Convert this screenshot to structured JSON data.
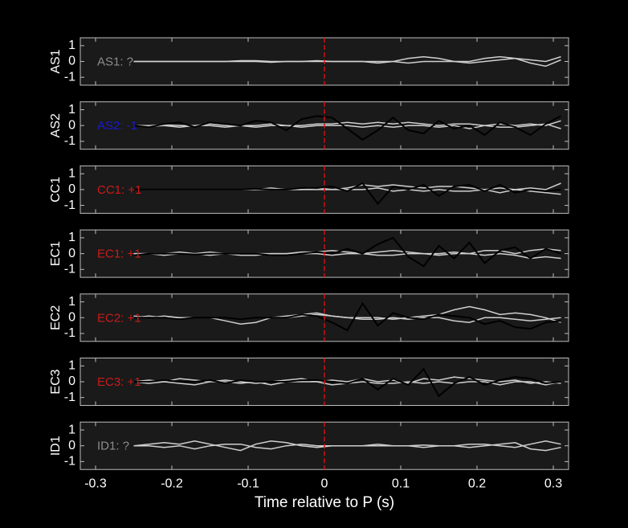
{
  "chart_data": [
    {
      "type": "line",
      "ylabel": "AS1",
      "annotation": "AS1: ?",
      "annotation_color": "#8c8c8c",
      "vline": 0,
      "vline_color": "#d01010",
      "xlim": [
        -0.32,
        0.32
      ],
      "ylim": [
        -1.5,
        1.5
      ],
      "yticks": [
        -1,
        0,
        1
      ],
      "xticks": [
        -0.3,
        -0.2,
        -0.1,
        0,
        0.1,
        0.2,
        0.3
      ],
      "x": [
        -0.25,
        -0.23,
        -0.21,
        -0.19,
        -0.17,
        -0.15,
        -0.13,
        -0.11,
        -0.09,
        -0.07,
        -0.05,
        -0.03,
        -0.01,
        0.01,
        0.03,
        0.05,
        0.07,
        0.09,
        0.11,
        0.13,
        0.15,
        0.17,
        0.19,
        0.21,
        0.23,
        0.25,
        0.27,
        0.29,
        0.31
      ],
      "series": [
        {
          "color": "#cfcfcf",
          "values": [
            0,
            0,
            0,
            0,
            0,
            0,
            0,
            0.05,
            0.05,
            0,
            0,
            0,
            0.05,
            0,
            0,
            0,
            -0.1,
            0,
            0.2,
            0.3,
            0.2,
            0,
            -0.1,
            0,
            0.1,
            0.2,
            0.1,
            0,
            0.3
          ]
        },
        {
          "color": "#cfcfcf",
          "values": [
            0,
            0,
            0,
            0,
            0,
            0,
            0,
            0,
            0,
            -0.05,
            0,
            0,
            0,
            0,
            0,
            0,
            0,
            0,
            -0.1,
            0,
            0,
            0,
            0,
            0.2,
            0.3,
            0.2,
            -0.1,
            -0.3,
            0.1
          ]
        }
      ]
    },
    {
      "type": "line",
      "ylabel": "AS2",
      "annotation": "AS2: -1",
      "annotation_color": "#1a1acc",
      "vline": 0,
      "vline_color": "#d01010",
      "xlim": [
        -0.32,
        0.32
      ],
      "ylim": [
        -1.5,
        1.5
      ],
      "yticks": [
        -1,
        0,
        1
      ],
      "xticks": [
        -0.3,
        -0.2,
        -0.1,
        0,
        0.1,
        0.2,
        0.3
      ],
      "x": [
        -0.25,
        -0.23,
        -0.21,
        -0.19,
        -0.17,
        -0.15,
        -0.13,
        -0.11,
        -0.09,
        -0.07,
        -0.05,
        -0.03,
        -0.01,
        0.01,
        0.03,
        0.05,
        0.07,
        0.09,
        0.11,
        0.13,
        0.15,
        0.17,
        0.19,
        0.21,
        0.23,
        0.25,
        0.27,
        0.29,
        0.31
      ],
      "series": [
        {
          "color": "#cfcfcf",
          "values": [
            0,
            0,
            0.05,
            0,
            0,
            0.1,
            0,
            0,
            0,
            0.1,
            0,
            0,
            0.1,
            0.1,
            0.2,
            0.1,
            0.2,
            0.1,
            0.2,
            0.1,
            0,
            0.1,
            0.1,
            0,
            0.1,
            0,
            0.1,
            0,
            0.3
          ]
        },
        {
          "color": "#cfcfcf",
          "values": [
            0,
            -0.05,
            0,
            -0.1,
            0,
            0,
            -0.1,
            0,
            -0.1,
            0,
            0,
            -0.1,
            0,
            0,
            0,
            -0.1,
            0,
            -0.1,
            0,
            0,
            -0.1,
            0,
            -0.2,
            0,
            -0.1,
            -0.1,
            0,
            0.1,
            -0.2
          ]
        },
        {
          "color": "#000000",
          "values": [
            0,
            -0.1,
            0.1,
            0.2,
            -0.1,
            0.2,
            0.1,
            0,
            0.3,
            0.2,
            -0.3,
            0.4,
            0.6,
            0.5,
            -0.2,
            -0.9,
            -0.3,
            0.5,
            -0.3,
            -0.5,
            0.3,
            -0.2,
            0,
            -0.6,
            0.2,
            -0.1,
            -0.6,
            0.1,
            0.6
          ]
        }
      ]
    },
    {
      "type": "line",
      "ylabel": "CC1",
      "annotation": "CC1: +1",
      "annotation_color": "#cc1a1a",
      "vline": 0,
      "vline_color": "#d01010",
      "xlim": [
        -0.32,
        0.32
      ],
      "ylim": [
        -1.5,
        1.5
      ],
      "yticks": [
        -1,
        0,
        1
      ],
      "xticks": [
        -0.3,
        -0.2,
        -0.1,
        0,
        0.1,
        0.2,
        0.3
      ],
      "x": [
        -0.25,
        -0.23,
        -0.21,
        -0.19,
        -0.17,
        -0.15,
        -0.13,
        -0.11,
        -0.09,
        -0.07,
        -0.05,
        -0.03,
        -0.01,
        0.01,
        0.03,
        0.05,
        0.07,
        0.09,
        0.11,
        0.13,
        0.15,
        0.17,
        0.19,
        0.21,
        0.23,
        0.25,
        0.27,
        0.29,
        0.31
      ],
      "series": [
        {
          "color": "#cfcfcf",
          "values": [
            0,
            0,
            0,
            0,
            0,
            0,
            0,
            0,
            0,
            0.1,
            0,
            0,
            0.1,
            0,
            0.1,
            0.3,
            0.2,
            0.3,
            0.2,
            0.1,
            0.2,
            0.2,
            0.1,
            0,
            0.1,
            0,
            0.1,
            0,
            0.4
          ]
        },
        {
          "color": "#cfcfcf",
          "values": [
            0,
            0,
            0,
            0,
            0,
            0,
            0,
            0,
            0,
            0,
            0,
            0,
            0,
            0,
            0,
            0,
            0.1,
            -0.1,
            0,
            -0.1,
            0,
            -0.1,
            -0.1,
            0,
            -0.2,
            0,
            -0.1,
            -0.2,
            -0.3
          ]
        },
        {
          "color": "#000000",
          "values": [
            0,
            0,
            0,
            0,
            0,
            0,
            0,
            0,
            0.05,
            0,
            0,
            0.1,
            0.1,
            0.2,
            -0.1,
            0.4,
            -0.9,
            0.2,
            0,
            0.3,
            -0.4,
            0.2,
            0.3,
            -0.1,
            0.3,
            -0.2,
            0,
            -0.1,
            0
          ]
        }
      ]
    },
    {
      "type": "line",
      "ylabel": "EC1",
      "annotation": "EC1: +1",
      "annotation_color": "#cc1a1a",
      "vline": 0,
      "vline_color": "#d01010",
      "xlim": [
        -0.32,
        0.32
      ],
      "ylim": [
        -1.5,
        1.5
      ],
      "yticks": [
        -1,
        0,
        1
      ],
      "xticks": [
        -0.3,
        -0.2,
        -0.1,
        0,
        0.1,
        0.2,
        0.3
      ],
      "x": [
        -0.25,
        -0.23,
        -0.21,
        -0.19,
        -0.17,
        -0.15,
        -0.13,
        -0.11,
        -0.09,
        -0.07,
        -0.05,
        -0.03,
        -0.01,
        0.01,
        0.03,
        0.05,
        0.07,
        0.09,
        0.11,
        0.13,
        0.15,
        0.17,
        0.19,
        0.21,
        0.23,
        0.25,
        0.27,
        0.29,
        0.31
      ],
      "series": [
        {
          "color": "#cfcfcf",
          "values": [
            0,
            0,
            0,
            0.1,
            0,
            0.1,
            0,
            0,
            0,
            0,
            0,
            0.1,
            0.1,
            0.2,
            0.1,
            0,
            0.1,
            0.2,
            0.1,
            0,
            0,
            0.1,
            0,
            0.2,
            0.2,
            0,
            0.2,
            0.3,
            0.2
          ]
        },
        {
          "color": "#cfcfcf",
          "values": [
            0,
            0,
            -0.1,
            0,
            0,
            -0.1,
            0,
            -0.1,
            -0.1,
            0,
            0,
            0,
            0,
            -0.1,
            0,
            0,
            -0.1,
            -0.1,
            0,
            0,
            -0.1,
            0,
            0,
            -0.1,
            0,
            -0.1,
            -0.3,
            -0.2,
            -0.3
          ]
        },
        {
          "color": "#000000",
          "values": [
            -0.1,
            0,
            0,
            0,
            -0.05,
            0,
            0,
            0,
            0,
            -0.1,
            -0.1,
            0,
            0.1,
            0,
            0.3,
            0,
            0.6,
            1.0,
            -0.2,
            -0.8,
            0.5,
            -0.3,
            0.7,
            -0.6,
            0.2,
            0.4,
            -0.3,
            0.3,
            0
          ]
        }
      ]
    },
    {
      "type": "line",
      "ylabel": "EC2",
      "annotation": "EC2: +1",
      "annotation_color": "#cc1a1a",
      "vline": 0,
      "vline_color": "#d01010",
      "xlim": [
        -0.32,
        0.32
      ],
      "ylim": [
        -1.5,
        1.5
      ],
      "yticks": [
        -1,
        0,
        1
      ],
      "xticks": [
        -0.3,
        -0.2,
        -0.1,
        0,
        0.1,
        0.2,
        0.3
      ],
      "x": [
        -0.25,
        -0.23,
        -0.21,
        -0.19,
        -0.17,
        -0.15,
        -0.13,
        -0.11,
        -0.09,
        -0.07,
        -0.05,
        -0.03,
        -0.01,
        0.01,
        0.03,
        0.05,
        0.07,
        0.09,
        0.11,
        0.13,
        0.15,
        0.17,
        0.19,
        0.21,
        0.23,
        0.25,
        0.27,
        0.29,
        0.31
      ],
      "series": [
        {
          "color": "#cfcfcf",
          "values": [
            0,
            0.1,
            0,
            0,
            0,
            0,
            -0.2,
            -0.4,
            -0.3,
            0,
            0.1,
            0.2,
            0.3,
            0.1,
            0,
            0,
            0,
            -0.1,
            0,
            0.1,
            0.2,
            0.5,
            0.7,
            0.5,
            0.2,
            0.3,
            0.2,
            0,
            -0.3
          ]
        },
        {
          "color": "#cfcfcf",
          "values": [
            0.1,
            0,
            0.1,
            0,
            0,
            0,
            0,
            -0.1,
            0,
            0,
            0,
            0.1,
            0.2,
            0.1,
            0,
            -0.1,
            -0.1,
            0,
            -0.1,
            0,
            0,
            -0.2,
            -0.3,
            0,
            0,
            -0.1,
            -0.2,
            -0.1,
            0
          ]
        },
        {
          "color": "#000000",
          "values": [
            0,
            0,
            0,
            -0.1,
            0,
            0,
            0,
            -0.1,
            0,
            0,
            0,
            0.2,
            0.1,
            -0.3,
            -0.8,
            0.9,
            -0.5,
            0.3,
            0,
            -0.1,
            0.2,
            0.1,
            0,
            -0.4,
            -0.2,
            -0.6,
            -0.7,
            -0.3,
            -0.2
          ]
        }
      ]
    },
    {
      "type": "line",
      "ylabel": "EC3",
      "annotation": "EC3: +1",
      "annotation_color": "#cc1a1a",
      "vline": 0,
      "vline_color": "#d01010",
      "xlim": [
        -0.32,
        0.32
      ],
      "ylim": [
        -1.5,
        1.5
      ],
      "yticks": [
        -1,
        0,
        1
      ],
      "xticks": [
        -0.3,
        -0.2,
        -0.1,
        0,
        0.1,
        0.2,
        0.3
      ],
      "x": [
        -0.25,
        -0.23,
        -0.21,
        -0.19,
        -0.17,
        -0.15,
        -0.13,
        -0.11,
        -0.09,
        -0.07,
        -0.05,
        -0.03,
        -0.01,
        0.01,
        0.03,
        0.05,
        0.07,
        0.09,
        0.11,
        0.13,
        0.15,
        0.17,
        0.19,
        0.21,
        0.23,
        0.25,
        0.27,
        0.29,
        0.31
      ],
      "series": [
        {
          "color": "#cfcfcf",
          "values": [
            0,
            0.1,
            0,
            0.2,
            0.1,
            0,
            0.1,
            0,
            -0.1,
            0,
            0.1,
            0.2,
            0,
            0.1,
            0,
            0.2,
            0,
            0.1,
            -0.1,
            0.2,
            0.1,
            0.3,
            0.2,
            0.1,
            0,
            0.1,
            -0.1,
            0,
            -0.1
          ]
        },
        {
          "color": "#cfcfcf",
          "values": [
            0,
            -0.1,
            0,
            -0.1,
            -0.2,
            0,
            0,
            -0.1,
            0,
            -0.2,
            0,
            0,
            0,
            -0.2,
            -0.1,
            0,
            -0.1,
            -0.1,
            0,
            -0.1,
            0,
            -0.1,
            0,
            0,
            -0.2,
            0,
            0,
            -0.2,
            0
          ]
        },
        {
          "color": "#000000",
          "values": [
            0,
            0,
            0.1,
            0,
            0,
            0.1,
            -0.1,
            0.1,
            0,
            0,
            0,
            0.1,
            0.1,
            0,
            -0.1,
            0.2,
            -0.5,
            0.2,
            -0.2,
            0.8,
            -0.9,
            -0.1,
            0.3,
            -0.2,
            0.1,
            0.3,
            0.2,
            -0.1,
            0
          ]
        }
      ]
    },
    {
      "type": "line",
      "ylabel": "ID1",
      "annotation": "ID1: ?",
      "annotation_color": "#8c8c8c",
      "vline": 0,
      "vline_color": "#d01010",
      "xlabel": "Time relative to P (s)",
      "xlim": [
        -0.32,
        0.32
      ],
      "ylim": [
        -1.5,
        1.5
      ],
      "yticks": [
        -1,
        0,
        1
      ],
      "xticks": [
        -0.3,
        -0.2,
        -0.1,
        0,
        0.1,
        0.2,
        0.3
      ],
      "x": [
        -0.25,
        -0.23,
        -0.21,
        -0.19,
        -0.17,
        -0.15,
        -0.13,
        -0.11,
        -0.09,
        -0.07,
        -0.05,
        -0.03,
        -0.01,
        0.01,
        0.03,
        0.05,
        0.07,
        0.09,
        0.11,
        0.13,
        0.15,
        0.17,
        0.19,
        0.21,
        0.23,
        0.25,
        0.27,
        0.29,
        0.31
      ],
      "series": [
        {
          "color": "#cfcfcf",
          "values": [
            0,
            0.1,
            0.2,
            0.1,
            0.3,
            0.1,
            -0.1,
            -0.3,
            0.1,
            0.3,
            0.2,
            0,
            -0.1,
            0,
            0,
            0,
            0.1,
            0,
            0,
            -0.1,
            0,
            0,
            0.1,
            0.1,
            0,
            -0.1,
            0.1,
            0.3,
            0.1
          ]
        },
        {
          "color": "#cfcfcf",
          "values": [
            0,
            0,
            -0.1,
            0,
            -0.2,
            0,
            0.1,
            0.1,
            -0.1,
            -0.2,
            0,
            0.1,
            0,
            0,
            0,
            0,
            0,
            0,
            0,
            0.05,
            0,
            0,
            -0.1,
            0,
            0.1,
            0.2,
            -0.2,
            -0.3,
            -0.1
          ]
        }
      ]
    }
  ]
}
